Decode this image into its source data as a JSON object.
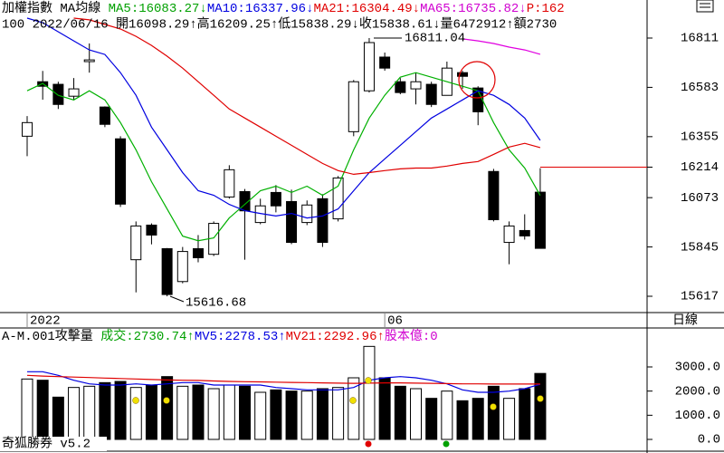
{
  "header": {
    "line1": [
      {
        "text": "加權指數 MA均線 ",
        "color": "#000000"
      },
      {
        "text": "MA5:16083.27↓",
        "color": "#00a000"
      },
      {
        "text": "MA10:16337.96↓",
        "color": "#0000e0"
      },
      {
        "text": "MA21:16304.49↓",
        "color": "#e00000"
      },
      {
        "text": "MA65:16735.82↓",
        "color": "#d000d0"
      },
      {
        "text": "P:162",
        "color": "#e00000"
      }
    ],
    "line2": "100 2022/06/16 開16098.29↑高16209.25↑低15838.29↓收15838.61↓量6472912↑額2730",
    "volume_line": [
      {
        "text": "A-M.001攻擊量 ",
        "color": "#000000"
      },
      {
        "text": "成交:2730.74↑",
        "color": "#00a000"
      },
      {
        "text": "MV5:2278.53↑",
        "color": "#0000e0"
      },
      {
        "text": "MV21:2292.96↑",
        "color": "#e00000"
      },
      {
        "text": "股本億:0",
        "color": "#d000d0"
      }
    ]
  },
  "period_label": "日線",
  "footer": "奇狐勝券 v5.2",
  "chart_data": [
    {
      "type": "candlestick",
      "categories": [
        "2022",
        null,
        null,
        null,
        null,
        null,
        null,
        null,
        null,
        null,
        null,
        null,
        null,
        null,
        null,
        null,
        null,
        null,
        null,
        null,
        null,
        null,
        null,
        "06",
        null,
        null,
        null,
        null,
        null,
        null,
        null,
        null,
        null,
        null
      ],
      "open": [
        16357,
        16609,
        16597,
        16542,
        16702,
        16492,
        16345,
        15786,
        15946,
        15837,
        15685,
        15837,
        15811,
        16076,
        16101,
        15958,
        16097,
        16055,
        15958,
        16068,
        15975,
        16378,
        16567,
        16723,
        16609,
        16576,
        16597,
        16546,
        16651,
        16580,
        16194,
        15866,
        15921,
        16098.29
      ],
      "high": [
        16450,
        16659,
        16609,
        16626,
        16786,
        16495,
        16357,
        15963,
        15954,
        15840,
        15845,
        15900,
        15963,
        16223,
        16113,
        16068,
        16131,
        16110,
        16060,
        16089,
        16173,
        16617,
        16811.04,
        16744,
        16626,
        16651,
        16609,
        16702,
        16660,
        16588,
        16206,
        15963,
        15996,
        16209.25
      ],
      "low": [
        16265,
        16526,
        16483,
        16525,
        16651,
        16399,
        16030,
        15635,
        15857,
        15616.68,
        15677,
        15774,
        15803,
        16068,
        15786,
        15950,
        16005,
        15858,
        15946,
        15845,
        15963,
        16357,
        16559,
        16660,
        16551,
        16504,
        16492,
        16546,
        16576,
        16408,
        15963,
        15765,
        15879,
        15838.29
      ],
      "close": [
        16420,
        16588,
        16504,
        16576,
        16710,
        16412,
        16043,
        15942,
        15900,
        15625,
        15824,
        15795,
        15954,
        16202,
        16012,
        16035,
        16035,
        15866,
        16039,
        15866,
        16164,
        16609,
        16790,
        16672,
        16559,
        16609,
        16504,
        16672,
        16634,
        16470,
        15971,
        15942,
        15896,
        15838.61
      ],
      "up_color": "#ffffff",
      "down_color": "#000000",
      "series": [
        {
          "color": "#00b000",
          "values": [
            16567,
            16601,
            16546,
            16525,
            16567,
            16525,
            16420,
            16294,
            16147,
            16021,
            15895,
            15874,
            15887,
            15979,
            16042,
            16105,
            16126,
            16097,
            16126,
            16084,
            16126,
            16294,
            16441,
            16546,
            16630,
            16651,
            16630,
            16609,
            16588,
            16567,
            16420,
            16294,
            16210,
            16083.27
          ]
        },
        {
          "color": "#0000e0",
          "values": [
            16903,
            16882,
            16840,
            16798,
            16756,
            16735,
            16651,
            16546,
            16399,
            16294,
            16189,
            16105,
            16084,
            16042,
            16013,
            16000,
            15988,
            16000,
            15979,
            15988,
            16021,
            16105,
            16189,
            16252,
            16315,
            16378,
            16441,
            16483,
            16525,
            16567,
            16546,
            16504,
            16441,
            16337.96
          ]
        },
        {
          "color": "#e00000",
          "values": [
            null,
            null,
            null,
            16903,
            16895,
            16874,
            16853,
            16819,
            16777,
            16727,
            16672,
            16609,
            16546,
            16483,
            16441,
            16399,
            16357,
            16315,
            16273,
            16231,
            16198,
            16181,
            16189,
            16198,
            16206,
            16210,
            16210,
            16219,
            16231,
            16240,
            16273,
            16307,
            16324,
            16304.49
          ]
        },
        {
          "color": "#e000e0",
          "values": [
            null,
            null,
            null,
            null,
            null,
            null,
            null,
            null,
            null,
            null,
            null,
            null,
            null,
            null,
            null,
            null,
            null,
            null,
            null,
            null,
            null,
            null,
            null,
            null,
            null,
            null,
            null,
            null,
            16807,
            16798,
            16786,
            16769,
            16756,
            16735.82
          ]
        }
      ],
      "ylim": [
        15541.6,
        16911.5
      ],
      "yticks": [
        16811,
        16583,
        16355,
        16073,
        15845,
        15617
      ],
      "ref_line": {
        "value": 16214,
        "color": "#e00000"
      },
      "annotations": [
        "16811.04",
        "15616.68"
      ]
    },
    {
      "type": "bar",
      "values": [
        2500,
        2450,
        1750,
        2150,
        2200,
        2350,
        2400,
        2150,
        2250,
        2600,
        2200,
        2250,
        2100,
        2250,
        2200,
        1950,
        2050,
        2000,
        2000,
        2100,
        2150,
        2550,
        3850,
        2550,
        2200,
        2100,
        1700,
        2000,
        1600,
        1700,
        2200,
        1700,
        2100,
        2730.74
      ],
      "series": [
        {
          "color": "#0000e0",
          "values": [
            2800,
            2800,
            2650,
            2450,
            2300,
            2250,
            2250,
            2300,
            2250,
            2300,
            2350,
            2350,
            2250,
            2250,
            2250,
            2250,
            2150,
            2100,
            2050,
            2050,
            2050,
            2150,
            2450,
            2550,
            2600,
            2550,
            2450,
            2300,
            2050,
            1950,
            1950,
            2000,
            2100,
            2278.53
          ]
        },
        {
          "color": "#e00000",
          "values": [
            2650,
            2620,
            2600,
            2580,
            2560,
            2540,
            2520,
            2500,
            2480,
            2460,
            2450,
            2440,
            2420,
            2400,
            2390,
            2380,
            2370,
            2360,
            2350,
            2340,
            2330,
            2320,
            2330,
            2340,
            2340,
            2330,
            2320,
            2310,
            2300,
            2300,
            2290,
            2290,
            2290,
            2292.96
          ]
        }
      ],
      "ylim": [
        -450,
        3937.5
      ],
      "yticks": [
        {
          "value": 3000,
          "label": "3000.0"
        },
        {
          "value": 2000,
          "label": "2000.0"
        },
        {
          "value": 1000,
          "label": "1000.0"
        },
        {
          "value": 0,
          "label": "0.0"
        }
      ]
    }
  ]
}
